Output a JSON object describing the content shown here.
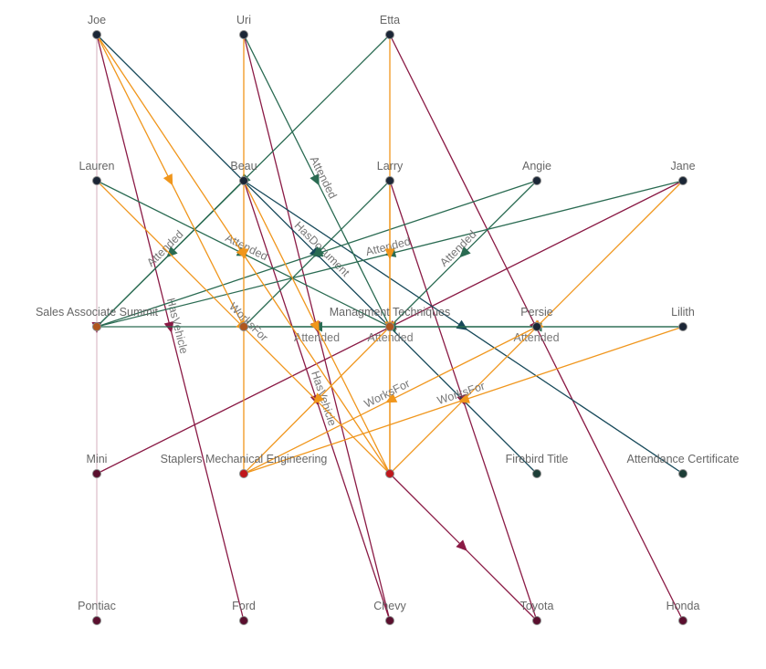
{
  "colors": {
    "attended": "#2a6b52",
    "works_for": "#f0961c",
    "has_vehicle": "#8a1a45",
    "has_document": "#17495a",
    "node_person": "#1b2636",
    "node_event": "#b0561e",
    "node_company": "#c0171c",
    "node_vehicle": "#5a0f2e",
    "node_document": "#1c3d36"
  },
  "nodes": [
    {
      "id": "joe",
      "label": "Joe",
      "kind": "person"
    },
    {
      "id": "uri",
      "label": "Uri",
      "kind": "person"
    },
    {
      "id": "etta",
      "label": "Etta",
      "kind": "person"
    },
    {
      "id": "lauren",
      "label": "Lauren",
      "kind": "person"
    },
    {
      "id": "beau",
      "label": "Beau",
      "kind": "person"
    },
    {
      "id": "larry",
      "label": "Larry",
      "kind": "person"
    },
    {
      "id": "angie",
      "label": "Angie",
      "kind": "person"
    },
    {
      "id": "jane",
      "label": "Jane",
      "kind": "person"
    },
    {
      "id": "sas",
      "label": "Sales Associate Summit",
      "kind": "event"
    },
    {
      "id": "ev2",
      "label": "",
      "kind": "event"
    },
    {
      "id": "mt",
      "label": "Managment Techniques",
      "kind": "event"
    },
    {
      "id": "persie",
      "label": "Persie",
      "kind": "person"
    },
    {
      "id": "lilith",
      "label": "Lilith",
      "kind": "person"
    },
    {
      "id": "mini",
      "label": "Mini",
      "kind": "vehicle"
    },
    {
      "id": "staplers",
      "label": "Staplers Mechanical Engineering",
      "kind": "company"
    },
    {
      "id": "co2",
      "label": "",
      "kind": "company"
    },
    {
      "id": "firebird",
      "label": "Firebird Title",
      "kind": "document"
    },
    {
      "id": "attcert",
      "label": "Attendance Certificate",
      "kind": "document"
    },
    {
      "id": "pontiac",
      "label": "Pontiac",
      "kind": "vehicle"
    },
    {
      "id": "ford",
      "label": "Ford",
      "kind": "vehicle"
    },
    {
      "id": "chevy",
      "label": "Chevy",
      "kind": "vehicle"
    },
    {
      "id": "toyota",
      "label": "Toyota",
      "kind": "vehicle"
    },
    {
      "id": "honda",
      "label": "Honda",
      "kind": "vehicle"
    }
  ],
  "edges": [
    {
      "from": "joe",
      "to": "pontiac",
      "type": "has_vehicle",
      "label": ""
    },
    {
      "from": "joe",
      "to": "ford",
      "type": "has_vehicle",
      "label": "HasVehicle"
    },
    {
      "from": "uri",
      "to": "chevy",
      "type": "has_vehicle",
      "label": ""
    },
    {
      "from": "beau",
      "to": "chevy",
      "type": "has_vehicle",
      "label": "HasVehicle"
    },
    {
      "from": "etta",
      "to": "honda",
      "type": "has_vehicle",
      "label": ""
    },
    {
      "from": "larry",
      "to": "toyota",
      "type": "has_vehicle",
      "label": ""
    },
    {
      "from": "jane",
      "to": "mini",
      "type": "has_vehicle",
      "label": ""
    },
    {
      "from": "co2",
      "to": "toyota",
      "type": "has_vehicle",
      "label": ""
    },
    {
      "from": "joe",
      "to": "firebird",
      "type": "has_document",
      "label": "HasDocument"
    },
    {
      "from": "beau",
      "to": "attcert",
      "type": "has_document",
      "label": ""
    },
    {
      "from": "etta",
      "to": "sas",
      "type": "attended",
      "label": ""
    },
    {
      "from": "beau",
      "to": "sas",
      "type": "attended",
      "label": "Attended"
    },
    {
      "from": "uri",
      "to": "mt",
      "type": "attended",
      "label": "Attended"
    },
    {
      "from": "lauren",
      "to": "mt",
      "type": "attended",
      "label": "Attended"
    },
    {
      "from": "larry",
      "to": "ev2",
      "type": "attended",
      "label": ""
    },
    {
      "from": "angie",
      "to": "sas",
      "type": "attended",
      "label": ""
    },
    {
      "from": "jane",
      "to": "sas",
      "type": "attended",
      "label": "Attended"
    },
    {
      "from": "angie",
      "to": "mt",
      "type": "attended",
      "label": "Attended"
    },
    {
      "from": "mt",
      "to": "ev2",
      "type": "attended",
      "label": "Attended"
    },
    {
      "from": "persie",
      "to": "ev2",
      "type": "attended",
      "label": "Attended"
    },
    {
      "from": "lilith",
      "to": "mt",
      "type": "attended",
      "label": "Attended"
    },
    {
      "from": "lilith",
      "to": "sas",
      "type": "attended",
      "label": ""
    },
    {
      "from": "joe",
      "to": "co2",
      "type": "works_for",
      "label": ""
    },
    {
      "from": "joe",
      "to": "ev2",
      "type": "works_for",
      "label": ""
    },
    {
      "from": "lauren",
      "to": "co2",
      "type": "works_for",
      "label": "WorksFor"
    },
    {
      "from": "uri",
      "to": "staplers",
      "type": "works_for",
      "label": ""
    },
    {
      "from": "etta",
      "to": "co2",
      "type": "works_for",
      "label": ""
    },
    {
      "from": "larry",
      "to": "co2",
      "type": "works_for",
      "label": ""
    },
    {
      "from": "beau",
      "to": "co2",
      "type": "works_for",
      "label": ""
    },
    {
      "from": "jane",
      "to": "co2",
      "type": "works_for",
      "label": ""
    },
    {
      "from": "persie",
      "to": "staplers",
      "type": "works_for",
      "label": "WorksFor"
    },
    {
      "from": "lilith",
      "to": "staplers",
      "type": "works_for",
      "label": "WorksFor"
    },
    {
      "from": "mt",
      "to": "staplers",
      "type": "works_for",
      "label": ""
    }
  ]
}
